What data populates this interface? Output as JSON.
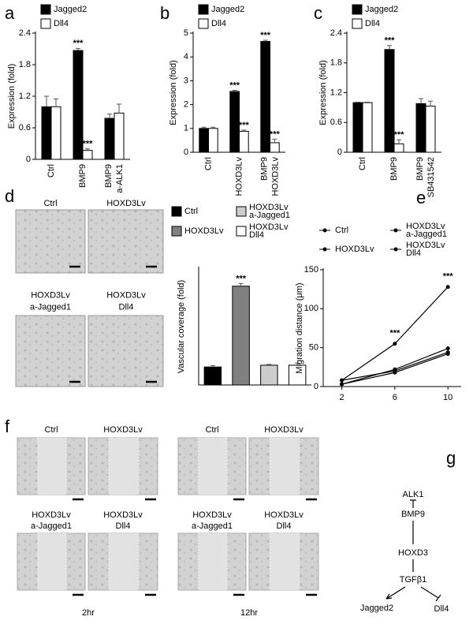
{
  "panel_labels": [
    "a",
    "b",
    "c",
    "d",
    "e",
    "f",
    "g"
  ],
  "chart_data": [
    {
      "type": "bar",
      "ylabel": "Expression (fold)",
      "categories": [
        "Ctrl",
        "BMP9",
        "BMP9\na-ALK1"
      ],
      "series": [
        {
          "name": "Jagged2",
          "color": "#000000",
          "values": [
            1.0,
            2.07,
            0.78
          ],
          "errors": [
            0.2,
            0.04,
            0.08
          ],
          "annotations": [
            null,
            "***",
            null
          ]
        },
        {
          "name": "Dll4",
          "color": "#ffffff",
          "values": [
            1.0,
            0.17,
            0.88
          ],
          "errors": [
            0.15,
            0.03,
            0.17
          ],
          "annotations": [
            null,
            "***",
            null
          ]
        }
      ],
      "ylim": [
        0,
        2.4
      ],
      "yticks": [
        0,
        0.6,
        1.2,
        1.8,
        2.4
      ]
    },
    {
      "type": "bar",
      "ylabel": "Expression (fold)",
      "categories": [
        "Ctrl",
        "HOXD3Lv",
        "BMP9\nHOXD3Lv"
      ],
      "series": [
        {
          "name": "Jagged2",
          "color": "#000000",
          "values": [
            1.0,
            2.55,
            4.65
          ],
          "errors": [
            0.05,
            0.05,
            0.05
          ],
          "annotations": [
            null,
            "***",
            "***"
          ]
        },
        {
          "name": "Dll4",
          "color": "#ffffff",
          "values": [
            1.0,
            0.88,
            0.4
          ],
          "errors": [
            0.05,
            0.05,
            0.15
          ],
          "annotations": [
            null,
            "***",
            "***"
          ]
        }
      ],
      "ylim": [
        0,
        5
      ],
      "yticks": [
        0,
        1,
        2,
        3,
        4,
        5
      ]
    },
    {
      "type": "bar",
      "ylabel": "Expression (fold)",
      "categories": [
        "Ctrl",
        "BMP9",
        "BMP9\nSB431542"
      ],
      "series": [
        {
          "name": "Jagged2",
          "color": "#000000",
          "values": [
            1.0,
            2.07,
            0.98
          ],
          "errors": [
            0.01,
            0.08,
            0.1
          ],
          "annotations": [
            null,
            "***",
            null
          ]
        },
        {
          "name": "Dll4",
          "color": "#ffffff",
          "values": [
            1.0,
            0.17,
            0.93
          ],
          "errors": [
            0.01,
            0.08,
            0.1
          ],
          "annotations": [
            null,
            "***",
            null
          ]
        }
      ],
      "ylim": [
        0,
        2.4
      ],
      "yticks": [
        0,
        0.6,
        1.2,
        1.8,
        2.4
      ]
    },
    {
      "type": "bar",
      "ylabel": "Vascular coverage (fold)",
      "series": [
        {
          "name": "Ctrl",
          "color": "#000000",
          "values": [
            1.0
          ],
          "errors": [
            0.08
          ]
        },
        {
          "name": "HOXD3Lv",
          "color": "#808080",
          "values": [
            5.5
          ],
          "errors": [
            0.15
          ],
          "annotations": [
            "***"
          ]
        },
        {
          "name": "HOXD3Lv\na-Jagged1",
          "color": "#cccccc",
          "values": [
            1.1
          ],
          "errors": [
            0.05
          ]
        },
        {
          "name": "HOXD3Lv\nDll4",
          "color": "#ffffff",
          "values": [
            1.1
          ],
          "errors": [
            0.12
          ]
        }
      ],
      "ylim": [
        0,
        6.5
      ]
    },
    {
      "type": "line",
      "ylabel": "Migration distance (μm)",
      "x": [
        2,
        6,
        10
      ],
      "xlim": [
        0.6,
        11
      ],
      "xticks": [
        2,
        6,
        10
      ],
      "ylim": [
        0,
        150
      ],
      "yticks": [
        0,
        50,
        100,
        150
      ],
      "series": [
        {
          "name": "Ctrl",
          "color": "#000000",
          "values": [
            8,
            20,
            44
          ]
        },
        {
          "name": "HOXD3Lv",
          "color": "#000000",
          "values": [
            8,
            55,
            128
          ],
          "annotations": [
            null,
            "***",
            "***"
          ]
        },
        {
          "name": "HOXD3Lv\na-Jagged1",
          "color": "#000000",
          "values": [
            3,
            22,
            49
          ]
        },
        {
          "name": "HOXD3Lv\nDll4",
          "color": "#000000",
          "values": [
            3,
            18,
            42
          ]
        }
      ]
    }
  ],
  "tube_images": {
    "labels": [
      "Ctrl",
      "HOXD3Lv",
      "HOXD3Lv\na-Jagged1",
      "HOXD3Lv\nDll4"
    ]
  },
  "wound_assay": [
    {
      "time": "2hr",
      "labels": [
        "Ctrl",
        "HOXD3Lv",
        "HOXD3Lv\na-Jagged1",
        "HOXD3Lv\nDll4"
      ]
    },
    {
      "time": "12hr",
      "labels": [
        "Ctrl",
        "HOXD3Lv",
        "HOXD3Lv\na-Jagged1",
        "HOXD3Lv\nDll4"
      ]
    }
  ],
  "pathway": {
    "nodes": [
      "ALK1",
      "BMP9",
      "HOXD3",
      "TGFβ1",
      "Jagged2",
      "Dll4"
    ]
  }
}
